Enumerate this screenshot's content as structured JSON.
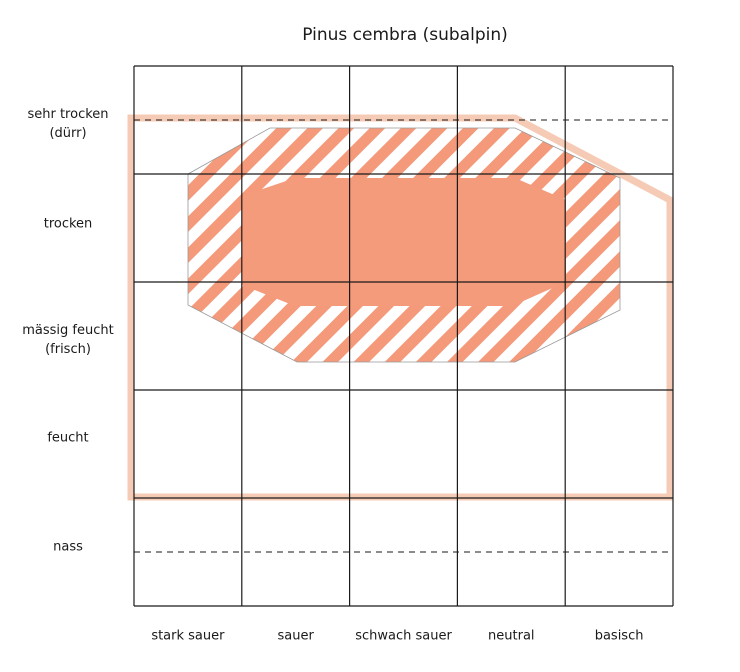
{
  "title": "Pinus cembra (subalpin)",
  "rows": [
    [
      "sehr trocken",
      "(dürr)"
    ],
    [
      "trocken"
    ],
    [
      "mässig feucht",
      "(frisch)"
    ],
    [
      "feucht"
    ],
    [
      "nass"
    ]
  ],
  "columns": [
    "stark sauer",
    "sauer",
    "schwach sauer",
    "neutral",
    "basisch"
  ]
}
